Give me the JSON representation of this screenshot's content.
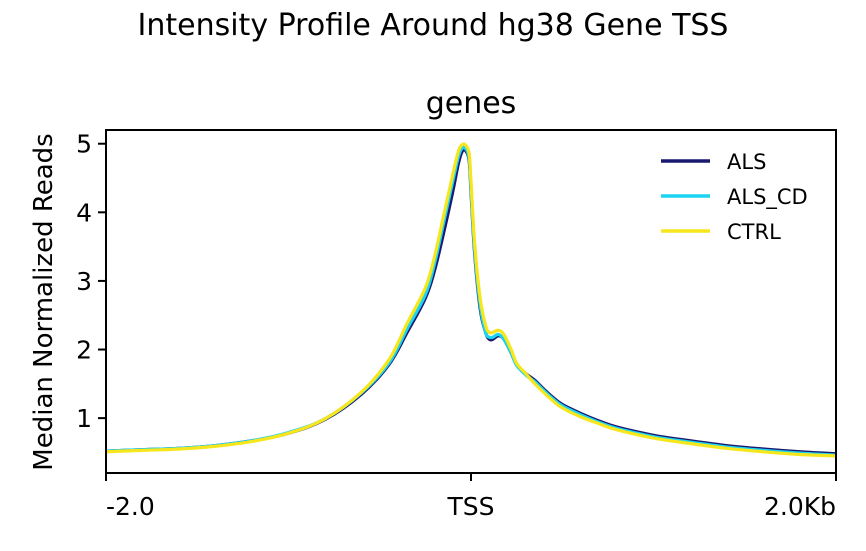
{
  "title": "Intensity Profile Around hg38 Gene TSS",
  "chart_data": {
    "type": "line",
    "title": "genes",
    "xlabel": "",
    "ylabel": "Median Normalized Reads",
    "xlim": [
      -2.0,
      2.0
    ],
    "ylim": [
      0.2,
      5.2
    ],
    "xticks": [
      {
        "value": -2.0,
        "label": "-2.0"
      },
      {
        "value": 0.0,
        "label": "TSS"
      },
      {
        "value": 2.0,
        "label": "2.0Kb"
      }
    ],
    "yticks": [
      1,
      2,
      3,
      4,
      5
    ],
    "grid": false,
    "legend": "top-right",
    "x": [
      -2.0,
      -1.8,
      -1.6,
      -1.4,
      -1.2,
      -1.0,
      -0.8,
      -0.6,
      -0.45,
      -0.35,
      -0.25,
      -0.2,
      -0.15,
      -0.1,
      -0.07,
      -0.05,
      -0.03,
      -0.01,
      0.0,
      0.02,
      0.05,
      0.08,
      0.1,
      0.12,
      0.15,
      0.18,
      0.22,
      0.25,
      0.3,
      0.35,
      0.4,
      0.45,
      0.5,
      0.6,
      0.7,
      0.8,
      1.0,
      1.2,
      1.4,
      1.6,
      1.8,
      2.0
    ],
    "series": [
      {
        "name": "ALS",
        "color": "#191970",
        "values": [
          0.52,
          0.54,
          0.56,
          0.6,
          0.67,
          0.78,
          0.98,
          1.35,
          1.78,
          2.25,
          2.75,
          3.15,
          3.7,
          4.3,
          4.7,
          4.88,
          4.9,
          4.75,
          4.3,
          3.4,
          2.6,
          2.25,
          2.15,
          2.15,
          2.2,
          2.15,
          1.95,
          1.78,
          1.65,
          1.55,
          1.42,
          1.3,
          1.2,
          1.07,
          0.96,
          0.87,
          0.75,
          0.67,
          0.6,
          0.55,
          0.51,
          0.48
        ]
      },
      {
        "name": "ALS_CD",
        "color": "#1ad4f2",
        "values": [
          0.52,
          0.54,
          0.56,
          0.6,
          0.67,
          0.79,
          0.99,
          1.37,
          1.8,
          2.3,
          2.8,
          3.25,
          3.85,
          4.45,
          4.8,
          4.93,
          4.93,
          4.78,
          4.35,
          3.45,
          2.65,
          2.25,
          2.18,
          2.18,
          2.22,
          2.15,
          1.95,
          1.77,
          1.63,
          1.53,
          1.4,
          1.28,
          1.18,
          1.05,
          0.94,
          0.85,
          0.73,
          0.65,
          0.58,
          0.53,
          0.49,
          0.46
        ]
      },
      {
        "name": "CTRL",
        "color": "#f7e61c",
        "values": [
          0.51,
          0.53,
          0.55,
          0.59,
          0.66,
          0.78,
          0.99,
          1.38,
          1.85,
          2.38,
          2.9,
          3.35,
          3.95,
          4.55,
          4.88,
          4.98,
          4.98,
          4.85,
          4.45,
          3.55,
          2.75,
          2.35,
          2.25,
          2.25,
          2.28,
          2.22,
          2.0,
          1.8,
          1.65,
          1.5,
          1.37,
          1.25,
          1.15,
          1.02,
          0.92,
          0.83,
          0.71,
          0.63,
          0.56,
          0.51,
          0.47,
          0.45
        ]
      }
    ]
  }
}
